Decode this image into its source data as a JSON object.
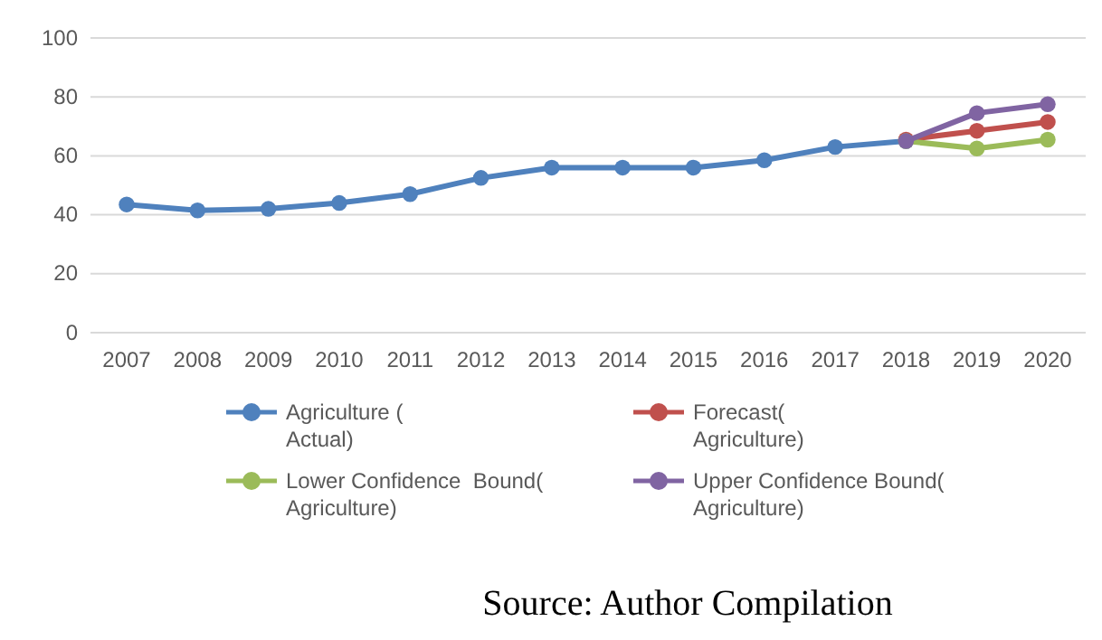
{
  "chart_data": {
    "type": "line",
    "categories": [
      "2007",
      "2008",
      "2009",
      "2010",
      "2011",
      "2012",
      "2013",
      "2014",
      "2015",
      "2016",
      "2017",
      "2018",
      "2019",
      "2020"
    ],
    "series": [
      {
        "name": "Agriculture (Actual)",
        "color": "#4f81bd",
        "values": [
          43.5,
          41.5,
          42,
          44,
          47,
          52.5,
          56,
          56,
          56,
          58.5,
          63,
          65,
          null,
          null
        ]
      },
      {
        "name": "Forecast( Agriculture)",
        "color": "#c0504d",
        "values": [
          null,
          null,
          null,
          null,
          null,
          null,
          null,
          null,
          null,
          null,
          null,
          65.5,
          68.5,
          71.5
        ]
      },
      {
        "name": "Lower Confidence  Bound( Agriculture)",
        "color": "#9bbb59",
        "values": [
          null,
          null,
          null,
          null,
          null,
          null,
          null,
          null,
          null,
          null,
          null,
          65,
          62.5,
          65.5
        ]
      },
      {
        "name": "Upper Confidence Bound( Agriculture)",
        "color": "#8064a2",
        "values": [
          null,
          null,
          null,
          null,
          null,
          null,
          null,
          null,
          null,
          null,
          null,
          65,
          74.5,
          77.5
        ]
      }
    ],
    "ylim": [
      0,
      100
    ],
    "yticks": [
      0,
      20,
      40,
      60,
      80,
      100
    ],
    "grid": "y",
    "legend": "bottom",
    "marker": "circle",
    "line_style": "solid",
    "annotations": [
      "Source: Author Compilation"
    ]
  }
}
